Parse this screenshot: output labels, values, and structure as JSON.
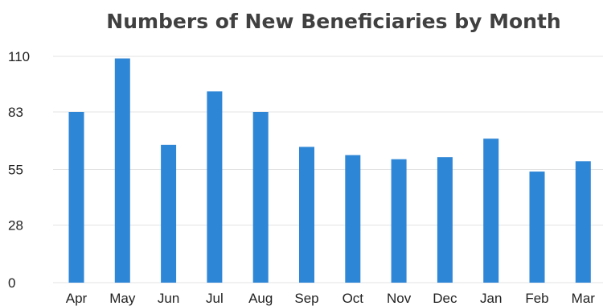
{
  "chart_data": {
    "type": "bar",
    "title": "Numbers of New Beneficiaries by Month",
    "xlabel": "",
    "ylabel": "",
    "categories": [
      "Apr",
      "May",
      "Jun",
      "Jul",
      "Aug",
      "Sep",
      "Oct",
      "Nov",
      "Dec",
      "Jan",
      "Feb",
      "Mar"
    ],
    "values": [
      83,
      109,
      67,
      93,
      83,
      66,
      62,
      60,
      61,
      70,
      54,
      59
    ],
    "ylim": [
      0,
      110
    ],
    "yticks": [
      "0",
      "28",
      "55",
      "83",
      "110"
    ],
    "grid": true,
    "legend": "none",
    "bar_color": "#2e86d6",
    "grid_color": "#e3e3e3"
  }
}
